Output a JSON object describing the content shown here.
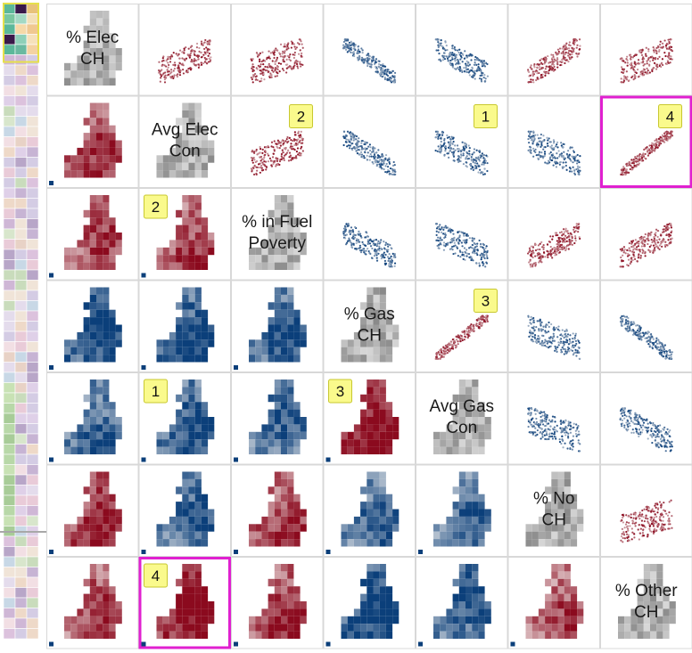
{
  "variables": [
    {
      "key": "pct_elec_ch",
      "label_lines": [
        "% Elec",
        "CH"
      ]
    },
    {
      "key": "avg_elec_con",
      "label_lines": [
        "Avg Elec",
        "Con"
      ]
    },
    {
      "key": "pct_fuel_poverty",
      "label_lines": [
        "% in Fuel",
        "Poverty"
      ]
    },
    {
      "key": "pct_gas_ch",
      "label_lines": [
        "% Gas",
        "CH"
      ]
    },
    {
      "key": "avg_gas_con",
      "label_lines": [
        "Avg Gas",
        "Con"
      ]
    },
    {
      "key": "pct_no_ch",
      "label_lines": [
        "% No",
        "CH"
      ]
    },
    {
      "key": "pct_other_ch",
      "label_lines": [
        "% Other",
        "CH"
      ]
    }
  ],
  "colors": {
    "highlight": "#e020d0",
    "callout_fill": "#fafa8c",
    "callout_border": "#c8c830",
    "diverging_red": "#8b0a1e",
    "diverging_blue": "#0b3f7a",
    "neutral": "#f2f0ee",
    "arrow": "#a8a8a8"
  },
  "callouts": [
    {
      "number": "1",
      "cells": [
        [
          1,
          4
        ],
        [
          4,
          1
        ]
      ]
    },
    {
      "number": "2",
      "cells": [
        [
          1,
          2
        ],
        [
          2,
          1
        ]
      ]
    },
    {
      "number": "3",
      "cells": [
        [
          3,
          4
        ],
        [
          4,
          3
        ]
      ]
    },
    {
      "number": "4",
      "cells": [
        [
          1,
          6
        ],
        [
          6,
          1
        ]
      ]
    }
  ],
  "highlighted_cells": [
    [
      1,
      6
    ],
    [
      6,
      1
    ]
  ],
  "chart_data": {
    "type": "scatter",
    "layout": "scatterplot-matrix",
    "upper_triangle": "scatter",
    "lower_triangle": "map",
    "diagonal": "variable-map",
    "variables": [
      "% Elec CH",
      "Avg Elec Con",
      "% in Fuel Poverty",
      "% Gas CH",
      "Avg Gas Con",
      "% No CH",
      "% Other CH"
    ],
    "correlation_sign": [
      [
        0,
        1,
        1,
        -1,
        -1,
        1,
        1
      ],
      [
        1,
        0,
        1,
        -1,
        -1,
        -1,
        1
      ],
      [
        1,
        1,
        0,
        -1,
        -1,
        1,
        1
      ],
      [
        -1,
        -1,
        -1,
        0,
        1,
        -1,
        -1
      ],
      [
        -1,
        -1,
        -1,
        1,
        0,
        -1,
        -1
      ],
      [
        1,
        -1,
        1,
        -1,
        -1,
        0,
        1
      ],
      [
        1,
        1,
        1,
        -1,
        -1,
        1,
        0
      ]
    ],
    "correlation_strength": [
      [
        0,
        0.5,
        0.4,
        0.85,
        0.6,
        0.7,
        0.5
      ],
      [
        0.5,
        0,
        0.5,
        0.75,
        0.6,
        0.5,
        0.95
      ],
      [
        0.4,
        0.5,
        0,
        0.6,
        0.5,
        0.6,
        0.6
      ],
      [
        0.85,
        0.75,
        0.6,
        0,
        0.95,
        0.5,
        0.85
      ],
      [
        0.6,
        0.6,
        0.5,
        0.95,
        0,
        0.45,
        0.6
      ],
      [
        0.7,
        0.5,
        0.6,
        0.5,
        0.45,
        0,
        0.4
      ],
      [
        0.5,
        0.95,
        0.6,
        0.85,
        0.6,
        0.4,
        0
      ]
    ],
    "grid": false,
    "legend": "none"
  }
}
